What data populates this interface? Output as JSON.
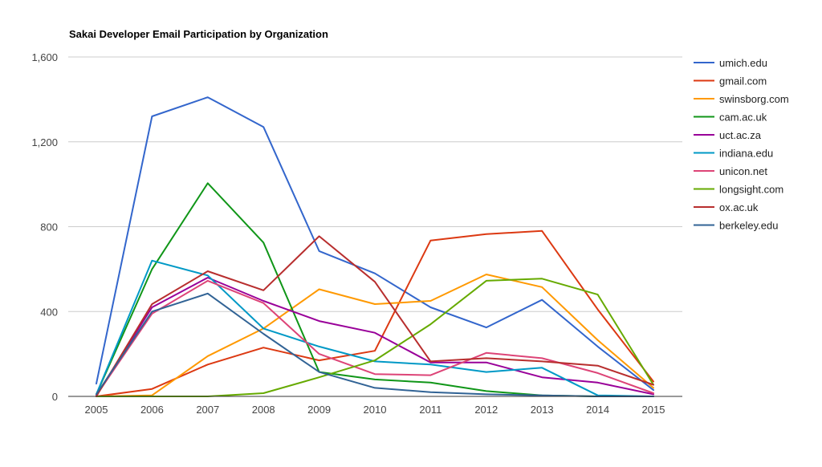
{
  "chart_data": {
    "type": "line",
    "title": "Sakai Developer Email Participation by Organization",
    "xlabel": "",
    "ylabel": "",
    "x": [
      "2005",
      "2006",
      "2007",
      "2008",
      "2009",
      "2010",
      "2011",
      "2012",
      "2013",
      "2014",
      "2015"
    ],
    "ylim": [
      0,
      1600
    ],
    "yticks": [
      0,
      400,
      800,
      1200,
      1600
    ],
    "ytick_labels": [
      "0",
      "400",
      "800",
      "1,200",
      "1,600"
    ],
    "grid": true,
    "legend_position": "right",
    "series": [
      {
        "name": "umich.edu",
        "color": "#3366cc",
        "values": [
          60,
          1320,
          1410,
          1270,
          685,
          580,
          420,
          325,
          455,
          235,
          30
        ]
      },
      {
        "name": "gmail.com",
        "color": "#dc3912",
        "values": [
          0,
          35,
          150,
          230,
          170,
          215,
          735,
          765,
          780,
          410,
          70
        ]
      },
      {
        "name": "swinsborg.com",
        "color": "#ff9900",
        "values": [
          0,
          5,
          190,
          320,
          505,
          435,
          450,
          575,
          515,
          265,
          40
        ]
      },
      {
        "name": "cam.ac.uk",
        "color": "#109618",
        "values": [
          10,
          600,
          1005,
          725,
          115,
          80,
          65,
          25,
          5,
          0,
          0
        ]
      },
      {
        "name": "uct.ac.za",
        "color": "#990099",
        "values": [
          5,
          420,
          560,
          450,
          355,
          300,
          160,
          160,
          90,
          65,
          10
        ]
      },
      {
        "name": "indiana.edu",
        "color": "#0099c6",
        "values": [
          10,
          640,
          570,
          320,
          235,
          165,
          150,
          115,
          135,
          5,
          0
        ]
      },
      {
        "name": "unicon.net",
        "color": "#dd4477",
        "values": [
          5,
          390,
          545,
          440,
          200,
          105,
          100,
          205,
          180,
          110,
          15
        ]
      },
      {
        "name": "longsight.com",
        "color": "#66aa00",
        "values": [
          0,
          0,
          0,
          15,
          90,
          170,
          340,
          545,
          555,
          480,
          55
        ]
      },
      {
        "name": "ox.ac.uk",
        "color": "#b82e2e",
        "values": [
          0,
          435,
          590,
          500,
          755,
          540,
          165,
          180,
          165,
          145,
          55
        ]
      },
      {
        "name": "berkeley.edu",
        "color": "#316395",
        "values": [
          10,
          400,
          485,
          295,
          115,
          40,
          20,
          10,
          5,
          0,
          0
        ]
      }
    ]
  }
}
